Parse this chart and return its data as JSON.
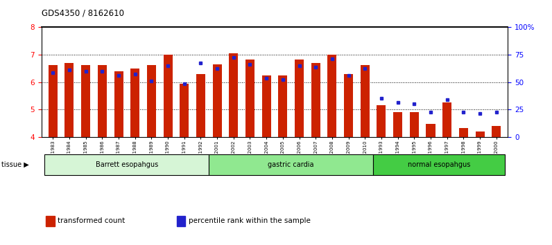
{
  "title": "GDS4350 / 8162610",
  "samples": [
    "GSM851983",
    "GSM851984",
    "GSM851985",
    "GSM851986",
    "GSM851987",
    "GSM851988",
    "GSM851989",
    "GSM851990",
    "GSM851991",
    "GSM851992",
    "GSM852001",
    "GSM852002",
    "GSM852003",
    "GSM852004",
    "GSM852005",
    "GSM852006",
    "GSM852007",
    "GSM852008",
    "GSM852009",
    "GSM852010",
    "GSM851993",
    "GSM851994",
    "GSM851995",
    "GSM851996",
    "GSM851997",
    "GSM851998",
    "GSM851999",
    "GSM852000"
  ],
  "red_bars": [
    6.62,
    6.7,
    6.62,
    6.62,
    6.38,
    6.48,
    6.62,
    7.0,
    5.95,
    6.3,
    6.65,
    7.05,
    6.82,
    6.25,
    6.25,
    6.82,
    6.7,
    7.0,
    6.3,
    6.62,
    5.15,
    4.92,
    4.92,
    4.48,
    5.25,
    4.32,
    4.2,
    4.42
  ],
  "blue_markers": [
    6.35,
    6.45,
    6.4,
    6.4,
    6.25,
    6.3,
    6.05,
    6.6,
    5.95,
    6.7,
    6.5,
    6.9,
    6.65,
    6.15,
    6.1,
    6.6,
    6.55,
    6.85,
    6.25,
    6.5,
    5.4,
    5.25,
    5.2,
    4.9,
    5.35,
    4.9,
    4.85,
    4.9
  ],
  "groups": [
    {
      "label": "Barrett esopahgus",
      "start": 0,
      "end": 9,
      "color": "#d6f5d6"
    },
    {
      "label": "gastric cardia",
      "start": 10,
      "end": 19,
      "color": "#90e890"
    },
    {
      "label": "normal esopahgus",
      "start": 20,
      "end": 27,
      "color": "#44cc44"
    }
  ],
  "ylim_left": [
    4.0,
    8.0
  ],
  "ylim_right": [
    0,
    100
  ],
  "yticks_left": [
    4,
    5,
    6,
    7,
    8
  ],
  "yticks_right": [
    0,
    25,
    50,
    75,
    100
  ],
  "bar_color": "#cc2200",
  "marker_color": "#2222cc",
  "bar_width": 0.55,
  "grid_yticks": [
    5,
    6,
    7
  ],
  "legend_items": [
    {
      "label": "transformed count",
      "color": "#cc2200"
    },
    {
      "label": "percentile rank within the sample",
      "color": "#2222cc"
    }
  ]
}
